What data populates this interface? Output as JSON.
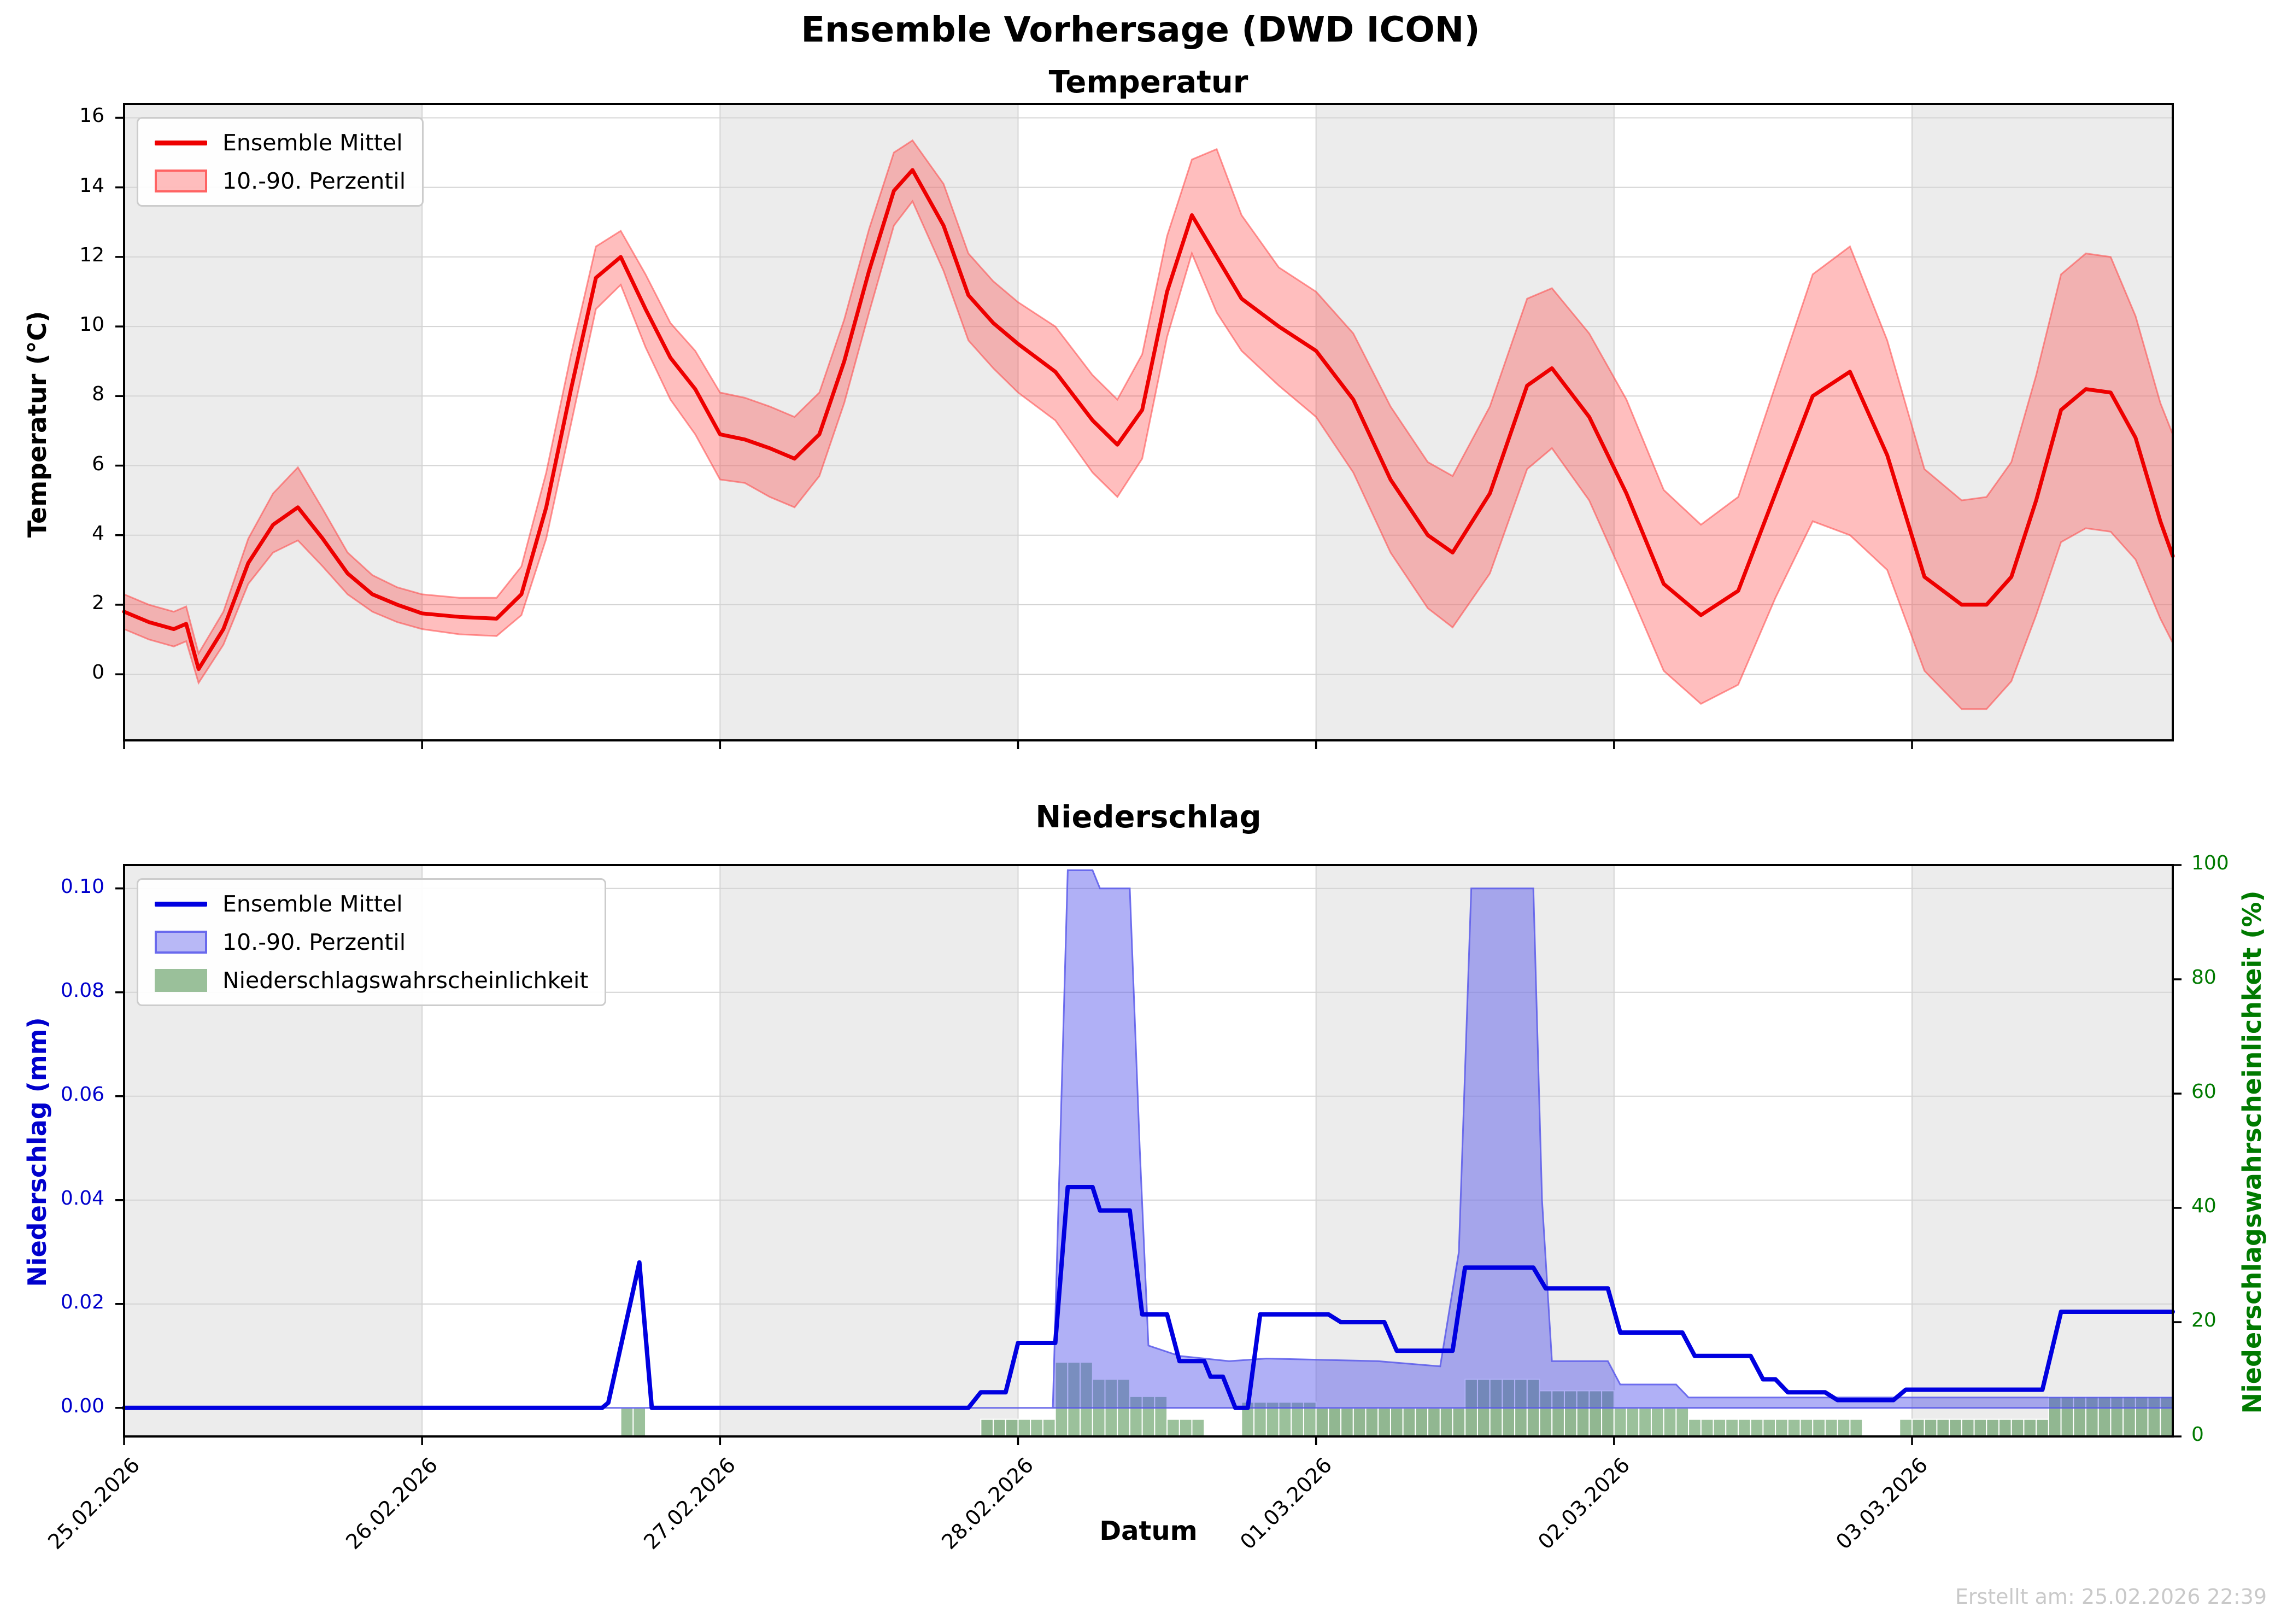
{
  "title": "Ensemble Vorhersage (DWD ICON)",
  "xlabel": "Datum",
  "created_note": "Erstellt am: 25.02.2026 22:39",
  "colors": {
    "temp_line": "#ee0000",
    "temp_band_fill": "rgba(255,40,40,0.30)",
    "temp_band_edge": "rgba(255,70,70,0.55)",
    "precip_line": "#0000e0",
    "precip_band_fill": "rgba(80,80,235,0.45)",
    "precip_band_edge": "rgba(90,90,235,0.85)",
    "prob_bar_fill": "rgba(45,125,45,0.48)",
    "prob_axis": "#007a00",
    "precip_axis": "#0000cc",
    "day_shade": "#ececec",
    "grid": "#d4d4d4",
    "spine": "#000000"
  },
  "chart_data": [
    {
      "type": "line",
      "title": "Temperatur",
      "ylabel": "Temperatur (°C)",
      "ylim": [
        -1.9,
        16.4
      ],
      "yticks": [
        0,
        2,
        4,
        6,
        8,
        10,
        12,
        14,
        16
      ],
      "xlim_hours": [
        0,
        165
      ],
      "x_ticks": [
        {
          "h": 0,
          "label": "25.02.2026"
        },
        {
          "h": 24,
          "label": "26.02.2026"
        },
        {
          "h": 48,
          "label": "27.02.2026"
        },
        {
          "h": 72,
          "label": "28.02.2026"
        },
        {
          "h": 96,
          "label": "01.03.2026"
        },
        {
          "h": 120,
          "label": "02.03.2026"
        },
        {
          "h": 144,
          "label": "03.03.2026"
        }
      ],
      "shaded_days": [
        [
          0,
          24
        ],
        [
          48,
          72
        ],
        [
          96,
          120
        ],
        [
          144,
          165
        ]
      ],
      "legend": [
        "Ensemble Mittel",
        "10.-90. Perzentil"
      ],
      "points_h_mean_p10_p90": [
        [
          0,
          1.8,
          1.3,
          2.3
        ],
        [
          2,
          1.5,
          1.0,
          2.0
        ],
        [
          4,
          1.3,
          0.8,
          1.8
        ],
        [
          5,
          1.45,
          0.95,
          1.95
        ],
        [
          6,
          0.15,
          -0.25,
          0.6
        ],
        [
          8,
          1.3,
          0.85,
          1.8
        ],
        [
          10,
          3.2,
          2.6,
          3.9
        ],
        [
          12,
          4.3,
          3.5,
          5.2
        ],
        [
          14,
          4.8,
          3.85,
          5.95
        ],
        [
          16,
          3.9,
          3.1,
          4.75
        ],
        [
          18,
          2.9,
          2.3,
          3.5
        ],
        [
          20,
          2.3,
          1.8,
          2.85
        ],
        [
          22,
          2.0,
          1.5,
          2.5
        ],
        [
          24,
          1.75,
          1.3,
          2.3
        ],
        [
          27,
          1.65,
          1.15,
          2.2
        ],
        [
          30,
          1.6,
          1.1,
          2.2
        ],
        [
          32,
          2.3,
          1.7,
          3.1
        ],
        [
          34,
          4.8,
          3.9,
          5.8
        ],
        [
          36,
          8.2,
          7.2,
          9.2
        ],
        [
          38,
          11.4,
          10.5,
          12.3
        ],
        [
          40,
          12.0,
          11.2,
          12.75
        ],
        [
          42,
          10.5,
          9.4,
          11.5
        ],
        [
          44,
          9.1,
          7.9,
          10.1
        ],
        [
          46,
          8.2,
          6.9,
          9.3
        ],
        [
          48,
          6.9,
          5.6,
          8.1
        ],
        [
          50,
          6.75,
          5.5,
          7.95
        ],
        [
          52,
          6.5,
          5.1,
          7.7
        ],
        [
          54,
          6.2,
          4.8,
          7.4
        ],
        [
          56,
          6.9,
          5.7,
          8.1
        ],
        [
          58,
          9.0,
          7.8,
          10.2
        ],
        [
          60,
          11.6,
          10.4,
          12.8
        ],
        [
          62,
          13.9,
          12.9,
          15.0
        ],
        [
          63.5,
          14.5,
          13.6,
          15.35
        ],
        [
          66,
          12.9,
          11.6,
          14.1
        ],
        [
          68,
          10.9,
          9.6,
          12.1
        ],
        [
          70,
          10.1,
          8.8,
          11.3
        ],
        [
          72,
          9.5,
          8.1,
          10.7
        ],
        [
          75,
          8.7,
          7.3,
          10.0
        ],
        [
          78,
          7.3,
          5.8,
          8.6
        ],
        [
          80,
          6.6,
          5.1,
          7.9
        ],
        [
          82,
          7.6,
          6.2,
          9.2
        ],
        [
          84,
          11.0,
          9.7,
          12.6
        ],
        [
          86,
          13.2,
          12.1,
          14.8
        ],
        [
          88,
          12.0,
          10.4,
          15.1
        ],
        [
          90,
          10.8,
          9.3,
          13.2
        ],
        [
          93,
          10.0,
          8.3,
          11.7
        ],
        [
          96,
          9.3,
          7.4,
          11.0
        ],
        [
          99,
          7.9,
          5.8,
          9.8
        ],
        [
          102,
          5.6,
          3.5,
          7.7
        ],
        [
          105,
          4.0,
          1.9,
          6.1
        ],
        [
          107,
          3.5,
          1.35,
          5.7
        ],
        [
          110,
          5.2,
          2.9,
          7.7
        ],
        [
          113,
          8.3,
          5.9,
          10.8
        ],
        [
          115,
          8.8,
          6.5,
          11.1
        ],
        [
          118,
          7.4,
          5.0,
          9.8
        ],
        [
          121,
          5.2,
          2.6,
          7.9
        ],
        [
          124,
          2.6,
          0.1,
          5.3
        ],
        [
          127,
          1.7,
          -0.85,
          4.3
        ],
        [
          130,
          2.4,
          -0.3,
          5.1
        ],
        [
          133,
          5.2,
          2.2,
          8.3
        ],
        [
          136,
          8.0,
          4.4,
          11.5
        ],
        [
          139,
          8.7,
          4.0,
          12.3
        ],
        [
          142,
          6.3,
          3.0,
          9.6
        ],
        [
          145,
          2.8,
          0.1,
          5.9
        ],
        [
          148,
          2.0,
          -1.0,
          5.0
        ],
        [
          150,
          2.0,
          -1.0,
          5.1
        ],
        [
          152,
          2.8,
          -0.2,
          6.1
        ],
        [
          154,
          5.0,
          1.7,
          8.6
        ],
        [
          156,
          7.6,
          3.8,
          11.5
        ],
        [
          158,
          8.2,
          4.2,
          12.1
        ],
        [
          160,
          8.1,
          4.1,
          12.0
        ],
        [
          162,
          6.8,
          3.3,
          10.3
        ],
        [
          164,
          4.4,
          1.6,
          7.8
        ],
        [
          165,
          3.4,
          0.9,
          6.9
        ]
      ]
    },
    {
      "type": "line+bar",
      "title": "Niederschlag",
      "ylabel_left": "Niederschlag (mm)",
      "ylabel_right": "Niederschlagswahrscheinlichkeit (%)",
      "ylim_mm": [
        -0.0055,
        0.1045
      ],
      "yticks_mm": [
        "0.00",
        "0.02",
        "0.04",
        "0.06",
        "0.08",
        "0.10"
      ],
      "ylim_pct": [
        0,
        100
      ],
      "yticks_pct": [
        0,
        20,
        40,
        60,
        80,
        100
      ],
      "legend": [
        "Ensemble Mittel",
        "10.-90. Perzentil",
        "Niederschlagswahrscheinlichkeit"
      ],
      "mean_mm": [
        [
          0,
          0
        ],
        [
          38.5,
          0
        ],
        [
          39,
          0.001
        ],
        [
          41.5,
          0.028
        ],
        [
          42.5,
          0
        ],
        [
          68,
          0
        ],
        [
          69,
          0.003
        ],
        [
          71,
          0.003
        ],
        [
          72,
          0.0125
        ],
        [
          75,
          0.0125
        ],
        [
          76,
          0.0425
        ],
        [
          78,
          0.0425
        ],
        [
          78.6,
          0.038
        ],
        [
          81,
          0.038
        ],
        [
          82,
          0.018
        ],
        [
          84,
          0.018
        ],
        [
          85,
          0.009
        ],
        [
          87,
          0.009
        ],
        [
          87.5,
          0.006
        ],
        [
          88.5,
          0.006
        ],
        [
          89.5,
          0
        ],
        [
          90.5,
          0
        ],
        [
          91.5,
          0.018
        ],
        [
          97,
          0.018
        ],
        [
          98,
          0.0165
        ],
        [
          101.5,
          0.0165
        ],
        [
          102.5,
          0.011
        ],
        [
          107,
          0.011
        ],
        [
          108,
          0.027
        ],
        [
          113.5,
          0.027
        ],
        [
          114.5,
          0.023
        ],
        [
          119.5,
          0.023
        ],
        [
          120.5,
          0.0145
        ],
        [
          125.5,
          0.0145
        ],
        [
          126.5,
          0.01
        ],
        [
          131,
          0.01
        ],
        [
          132,
          0.0055
        ],
        [
          133,
          0.0055
        ],
        [
          134,
          0.003
        ],
        [
          137,
          0.003
        ],
        [
          138,
          0.0015
        ],
        [
          142.5,
          0.0015
        ],
        [
          143.5,
          0.0035
        ],
        [
          154.5,
          0.0035
        ],
        [
          156,
          0.0185
        ],
        [
          165,
          0.0185
        ]
      ],
      "band_p90_mm": [
        [
          0,
          0
        ],
        [
          74.8,
          0
        ],
        [
          76,
          0.1035
        ],
        [
          78,
          0.1035
        ],
        [
          78.6,
          0.1
        ],
        [
          81,
          0.1
        ],
        [
          81.8,
          0.05
        ],
        [
          82.5,
          0.012
        ],
        [
          85,
          0.01
        ],
        [
          89,
          0.009
        ],
        [
          92,
          0.0095
        ],
        [
          101,
          0.009
        ],
        [
          106,
          0.008
        ],
        [
          107.5,
          0.03
        ],
        [
          108.5,
          0.1
        ],
        [
          113.5,
          0.1
        ],
        [
          114.2,
          0.04
        ],
        [
          115,
          0.009
        ],
        [
          119.5,
          0.009
        ],
        [
          120.5,
          0.0045
        ],
        [
          125,
          0.0045
        ],
        [
          126,
          0.002
        ],
        [
          165,
          0.002
        ]
      ],
      "band_p10_mm": 0,
      "prob_bars_pct": [
        {
          "start": 40,
          "end": 42,
          "pct": 5
        },
        {
          "start": 69,
          "end": 75,
          "pct": 3
        },
        {
          "start": 75,
          "end": 78,
          "pct": 13
        },
        {
          "start": 78,
          "end": 81,
          "pct": 10
        },
        {
          "start": 81,
          "end": 84,
          "pct": 7
        },
        {
          "start": 84,
          "end": 87,
          "pct": 3
        },
        {
          "start": 90,
          "end": 96,
          "pct": 6
        },
        {
          "start": 96,
          "end": 102,
          "pct": 5
        },
        {
          "start": 102,
          "end": 108,
          "pct": 5
        },
        {
          "start": 108,
          "end": 114,
          "pct": 10
        },
        {
          "start": 114,
          "end": 120,
          "pct": 8
        },
        {
          "start": 120,
          "end": 126,
          "pct": 5
        },
        {
          "start": 126,
          "end": 132,
          "pct": 3
        },
        {
          "start": 132,
          "end": 140,
          "pct": 3
        },
        {
          "start": 143,
          "end": 155,
          "pct": 3
        },
        {
          "start": 155,
          "end": 165,
          "pct": 7
        }
      ]
    }
  ]
}
